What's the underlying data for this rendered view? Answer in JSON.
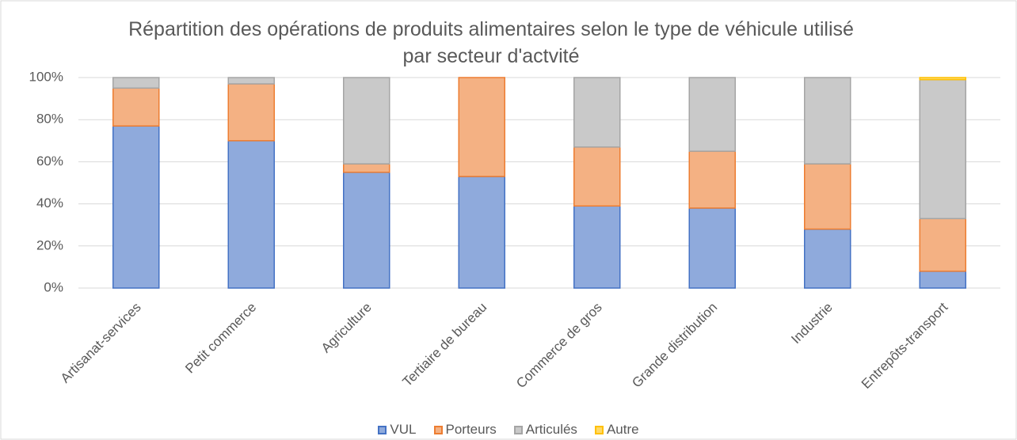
{
  "chart_data": {
    "type": "stacked_bar",
    "title": "Répartition des opérations de produits alimentaires selon le type de véhicule utilisé par secteur d'actvité",
    "categories": [
      "Artisanat-services",
      "Petit commerce",
      "Agriculture",
      "Tertiaire de bureau",
      "Commerce de gros",
      "Grande distribution",
      "Industrie",
      "Entrepôts-transport"
    ],
    "series": [
      {
        "name": "VUL",
        "color": "#8faadc",
        "border": "#4472c4",
        "values": [
          77,
          70,
          55,
          53,
          39,
          38,
          28,
          8
        ]
      },
      {
        "name": "Porteurs",
        "color": "#f4b183",
        "border": "#ed7d31",
        "values": [
          18,
          27,
          4,
          47,
          28,
          27,
          31,
          25
        ]
      },
      {
        "name": "Articulés",
        "color": "#c9c9c9",
        "border": "#a5a5a5",
        "values": [
          5,
          3,
          41,
          0,
          33,
          35,
          41,
          66
        ]
      },
      {
        "name": "Autre",
        "color": "#ffd966",
        "border": "#ffc000",
        "values": [
          0,
          0,
          0,
          0,
          0,
          0,
          0,
          1
        ]
      }
    ],
    "ylim": [
      0,
      100
    ],
    "yticks": [
      {
        "value": 0,
        "label": "0%"
      },
      {
        "value": 20,
        "label": "20%"
      },
      {
        "value": 40,
        "label": "40%"
      },
      {
        "value": 60,
        "label": "60%"
      },
      {
        "value": 80,
        "label": "80%"
      },
      {
        "value": 100,
        "label": "100%"
      }
    ],
    "grid": true,
    "legend": "bottom"
  }
}
